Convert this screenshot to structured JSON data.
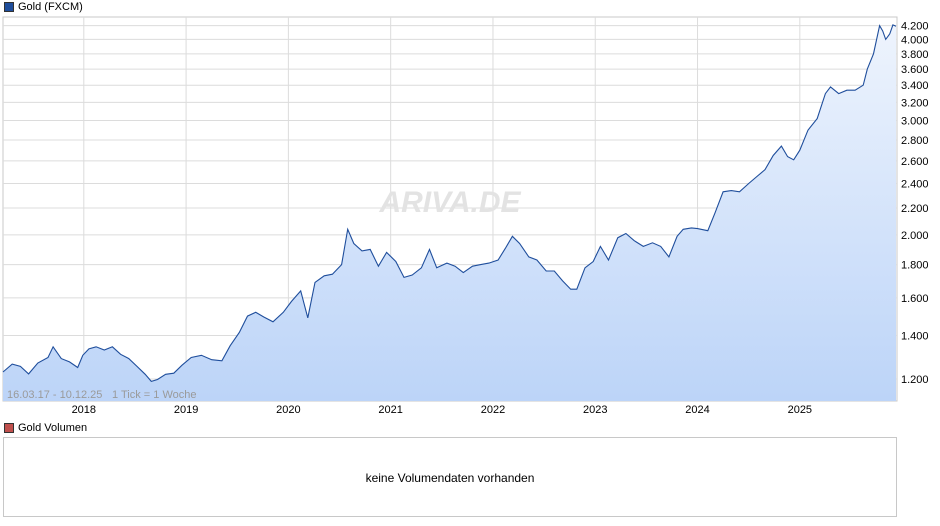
{
  "chart_data": {
    "type": "area",
    "legend_label": "Gold (FXCM)",
    "date_range": "16.03.17 - 10.12.25",
    "tick_info": "1 Tick = 1 Woche",
    "watermark": "ARIVA.DE",
    "y_scale": "log",
    "ylim": [
      1110,
      4330
    ],
    "y_ticks": [
      1200,
      1400,
      1600,
      1800,
      2000,
      2200,
      2400,
      2600,
      2800,
      3000,
      3200,
      3400,
      3600,
      3800,
      4000,
      4200
    ],
    "y_tick_labels": [
      "1.200",
      "1.400",
      "1.600",
      "1.800",
      "2.000",
      "2.200",
      "2.400",
      "2.600",
      "2.800",
      "3.000",
      "3.200",
      "3.400",
      "3.600",
      "3.800",
      "4.000",
      "4.200"
    ],
    "x_tick_labels": [
      "2018",
      "2019",
      "2020",
      "2021",
      "2022",
      "2023",
      "2024",
      "2025"
    ],
    "x_ticks": [
      2018.0,
      2019.0,
      2020.0,
      2021.0,
      2022.0,
      2023.0,
      2024.0,
      2025.0
    ],
    "xlim": [
      2017.21,
      2025.95
    ],
    "grid": true,
    "colors": {
      "line": "#1f4e9c",
      "fill_top": "#eef4fd",
      "fill_bottom": "#bcd4f8",
      "grid": "#dcdcdc"
    },
    "series": [
      {
        "name": "Gold (FXCM)",
        "points": [
          [
            2017.21,
            1230
          ],
          [
            2017.3,
            1265
          ],
          [
            2017.38,
            1255
          ],
          [
            2017.46,
            1222
          ],
          [
            2017.55,
            1270
          ],
          [
            2017.65,
            1295
          ],
          [
            2017.7,
            1345
          ],
          [
            2017.78,
            1290
          ],
          [
            2017.86,
            1275
          ],
          [
            2017.94,
            1250
          ],
          [
            2017.99,
            1305
          ],
          [
            2018.05,
            1335
          ],
          [
            2018.12,
            1345
          ],
          [
            2018.2,
            1330
          ],
          [
            2018.28,
            1345
          ],
          [
            2018.36,
            1310
          ],
          [
            2018.44,
            1290
          ],
          [
            2018.52,
            1255
          ],
          [
            2018.6,
            1220
          ],
          [
            2018.66,
            1190
          ],
          [
            2018.72,
            1198
          ],
          [
            2018.8,
            1220
          ],
          [
            2018.88,
            1225
          ],
          [
            2018.96,
            1260
          ],
          [
            2019.05,
            1295
          ],
          [
            2019.15,
            1305
          ],
          [
            2019.25,
            1285
          ],
          [
            2019.35,
            1280
          ],
          [
            2019.43,
            1350
          ],
          [
            2019.52,
            1415
          ],
          [
            2019.6,
            1500
          ],
          [
            2019.68,
            1520
          ],
          [
            2019.76,
            1495
          ],
          [
            2019.85,
            1470
          ],
          [
            2019.95,
            1520
          ],
          [
            2020.03,
            1580
          ],
          [
            2020.12,
            1640
          ],
          [
            2020.19,
            1490
          ],
          [
            2020.26,
            1690
          ],
          [
            2020.35,
            1730
          ],
          [
            2020.43,
            1740
          ],
          [
            2020.52,
            1800
          ],
          [
            2020.58,
            2040
          ],
          [
            2020.64,
            1940
          ],
          [
            2020.72,
            1890
          ],
          [
            2020.8,
            1900
          ],
          [
            2020.88,
            1790
          ],
          [
            2020.96,
            1880
          ],
          [
            2021.05,
            1820
          ],
          [
            2021.13,
            1720
          ],
          [
            2021.21,
            1735
          ],
          [
            2021.3,
            1780
          ],
          [
            2021.38,
            1900
          ],
          [
            2021.45,
            1780
          ],
          [
            2021.55,
            1810
          ],
          [
            2021.63,
            1790
          ],
          [
            2021.71,
            1750
          ],
          [
            2021.8,
            1790
          ],
          [
            2021.88,
            1800
          ],
          [
            2021.96,
            1810
          ],
          [
            2022.05,
            1830
          ],
          [
            2022.12,
            1905
          ],
          [
            2022.19,
            1990
          ],
          [
            2022.26,
            1940
          ],
          [
            2022.35,
            1850
          ],
          [
            2022.43,
            1830
          ],
          [
            2022.52,
            1760
          ],
          [
            2022.6,
            1760
          ],
          [
            2022.68,
            1700
          ],
          [
            2022.76,
            1650
          ],
          [
            2022.82,
            1650
          ],
          [
            2022.9,
            1780
          ],
          [
            2022.98,
            1820
          ],
          [
            2023.05,
            1920
          ],
          [
            2023.13,
            1830
          ],
          [
            2023.22,
            1980
          ],
          [
            2023.3,
            2010
          ],
          [
            2023.38,
            1960
          ],
          [
            2023.47,
            1920
          ],
          [
            2023.56,
            1945
          ],
          [
            2023.64,
            1920
          ],
          [
            2023.72,
            1850
          ],
          [
            2023.8,
            1990
          ],
          [
            2023.86,
            2040
          ],
          [
            2023.94,
            2050
          ],
          [
            2024.0,
            2045
          ],
          [
            2024.1,
            2030
          ],
          [
            2024.17,
            2160
          ],
          [
            2024.25,
            2330
          ],
          [
            2024.33,
            2340
          ],
          [
            2024.41,
            2330
          ],
          [
            2024.5,
            2400
          ],
          [
            2024.58,
            2460
          ],
          [
            2024.66,
            2520
          ],
          [
            2024.74,
            2650
          ],
          [
            2024.82,
            2740
          ],
          [
            2024.88,
            2640
          ],
          [
            2024.94,
            2610
          ],
          [
            2025.0,
            2700
          ],
          [
            2025.08,
            2900
          ],
          [
            2025.17,
            3020
          ],
          [
            2025.25,
            3300
          ],
          [
            2025.3,
            3380
          ],
          [
            2025.38,
            3300
          ],
          [
            2025.46,
            3340
          ],
          [
            2025.54,
            3340
          ],
          [
            2025.62,
            3400
          ],
          [
            2025.66,
            3600
          ],
          [
            2025.72,
            3800
          ],
          [
            2025.78,
            4200
          ],
          [
            2025.81,
            4120
          ],
          [
            2025.84,
            4000
          ],
          [
            2025.88,
            4080
          ],
          [
            2025.91,
            4210
          ],
          [
            2025.94,
            4190
          ]
        ]
      }
    ]
  },
  "volume": {
    "legend_label": "Gold Volumen",
    "message": "keine Volumendaten vorhanden"
  }
}
